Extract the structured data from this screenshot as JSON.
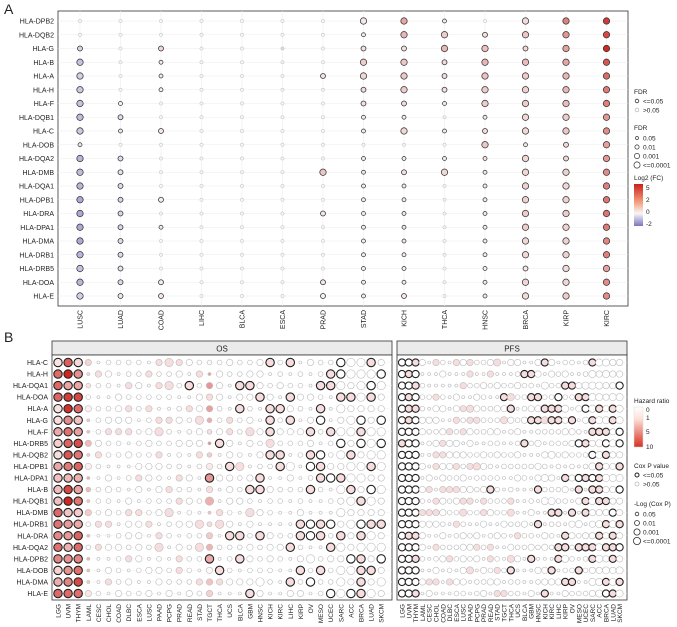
{
  "panel_letters": [
    "A",
    "B"
  ],
  "chart_data": [
    {
      "type": "scatter",
      "subtype": "bubble-matrix",
      "panel": "A",
      "genes": [
        "HLA-DPB2",
        "HLA-DQB2",
        "HLA-G",
        "HLA-B",
        "HLA-A",
        "HLA-H",
        "HLA-F",
        "HLA-DQB1",
        "HLA-C",
        "HLA-DOB",
        "HLA-DQA2",
        "HLA-DMB",
        "HLA-DQA1",
        "HLA-DPB1",
        "HLA-DRA",
        "HLA-DPA1",
        "HLA-DMA",
        "HLA-DRB1",
        "HLA-DRB5",
        "HLA-DOA",
        "HLA-E"
      ],
      "cancers": [
        "LUSC",
        "LUAD",
        "COAD",
        "LIHC",
        "BLCA",
        "ESCA",
        "PRAD",
        "STAD",
        "KICH",
        "THCA",
        "HNSC",
        "BRCA",
        "KIRP",
        "KIRC"
      ],
      "log2fc": [
        [
          0,
          0,
          0,
          0,
          0,
          0,
          0,
          0.3,
          1.5,
          0.2,
          0,
          0.5,
          2.2,
          3.5
        ],
        [
          0,
          0,
          0,
          0,
          0,
          0,
          0,
          0.2,
          1.2,
          0.8,
          0.4,
          0.9,
          1.8,
          3.2
        ],
        [
          -0.5,
          0,
          0.6,
          0,
          0,
          0.7,
          0,
          0.4,
          0.4,
          1.2,
          1.0,
          0.6,
          1.6,
          3.8
        ],
        [
          -0.8,
          0,
          0.2,
          0,
          0,
          0.1,
          0,
          0.8,
          0.9,
          0.5,
          1.2,
          1.1,
          1.5,
          3.0
        ],
        [
          -0.6,
          0,
          0.2,
          0,
          0,
          0.1,
          0.4,
          0.6,
          0.9,
          0.5,
          1.0,
          0.8,
          1.2,
          2.6
        ],
        [
          -0.7,
          0,
          0.1,
          0,
          0,
          0.1,
          0.1,
          0.5,
          0.8,
          0.4,
          0.8,
          0.7,
          1.2,
          2.3
        ],
        [
          -0.8,
          0,
          0,
          0,
          0,
          0,
          0,
          0.4,
          0.5,
          0.2,
          0.8,
          0.8,
          1.1,
          2.2
        ],
        [
          -0.9,
          -0.4,
          0,
          0,
          0,
          0,
          0,
          0.2,
          0.2,
          0.1,
          0.2,
          0.6,
          0.8,
          1.8
        ],
        [
          -0.7,
          -0.2,
          0.3,
          0,
          0,
          0,
          0,
          0.3,
          0.6,
          0.2,
          0.5,
          0.6,
          0.9,
          2.0
        ],
        [
          -0.2,
          0,
          0,
          0,
          0,
          0,
          0,
          0.1,
          0.1,
          0,
          0.9,
          0.3,
          0.5,
          1.6
        ],
        [
          -1.0,
          -0.4,
          0,
          0,
          0,
          0,
          0,
          0.2,
          0.2,
          0.2,
          0.3,
          0.6,
          0.6,
          1.8
        ],
        [
          -0.9,
          -0.3,
          0,
          0,
          0,
          0,
          0.9,
          0.3,
          0.4,
          0.6,
          0.2,
          0.6,
          0.7,
          2.0
        ],
        [
          -1.0,
          -0.4,
          0,
          0,
          0,
          0,
          0,
          0.2,
          0.2,
          0.1,
          0.2,
          0.7,
          0.6,
          2.2
        ],
        [
          -1.2,
          -0.5,
          0.2,
          0,
          0,
          0,
          0,
          0.2,
          0.2,
          0.1,
          0.2,
          0.7,
          0.7,
          2.4
        ],
        [
          -1.2,
          -0.5,
          0,
          0,
          0,
          0,
          0.3,
          0.2,
          0.3,
          0.1,
          0.3,
          0.8,
          0.8,
          2.4
        ],
        [
          -1.2,
          -0.5,
          0.2,
          0,
          0,
          0,
          0,
          0.2,
          0.3,
          0.1,
          0.2,
          0.8,
          0.7,
          2.3
        ],
        [
          -1.2,
          -0.4,
          0,
          0,
          0,
          0,
          0,
          0.2,
          0.3,
          0.1,
          0.2,
          0.6,
          0.7,
          2.1
        ],
        [
          -1.0,
          -0.4,
          0,
          0,
          0,
          0,
          0,
          0.2,
          0.2,
          0.1,
          0.2,
          0.6,
          0.7,
          2.2
        ],
        [
          -0.8,
          -0.3,
          0,
          0,
          0,
          0,
          0,
          0.1,
          0.1,
          0,
          0.1,
          0.3,
          0.5,
          1.6
        ],
        [
          -1.0,
          -0.4,
          0.2,
          0,
          0,
          0,
          0.3,
          0.2,
          0.2,
          0.1,
          0.2,
          0.6,
          0.6,
          2.0
        ],
        [
          -0.6,
          -0.2,
          0.3,
          0,
          0,
          0,
          0.1,
          0.2,
          0.3,
          0.1,
          0.2,
          0.5,
          0.8,
          2.0
        ]
      ],
      "fdr_level": [
        [
          0,
          0,
          0,
          0,
          0,
          0,
          0,
          3,
          3,
          1,
          0,
          3,
          3,
          3
        ],
        [
          0,
          0,
          0,
          0,
          0,
          0,
          0,
          1,
          3,
          3,
          2,
          3,
          3,
          3
        ],
        [
          2,
          0,
          2,
          0,
          0,
          0,
          0,
          2,
          2,
          3,
          3,
          2,
          3,
          3
        ],
        [
          3,
          0,
          1,
          0,
          0,
          0,
          0,
          3,
          3,
          2,
          3,
          3,
          3,
          3
        ],
        [
          3,
          0,
          1,
          0,
          0,
          0,
          2,
          3,
          3,
          2,
          3,
          3,
          3,
          3
        ],
        [
          3,
          0,
          1,
          0,
          0,
          0,
          0,
          2,
          3,
          2,
          3,
          3,
          3,
          3
        ],
        [
          3,
          1,
          0,
          0,
          0,
          0,
          0,
          2,
          2,
          1,
          3,
          3,
          3,
          3
        ],
        [
          3,
          2,
          0,
          0,
          0,
          0,
          0,
          1,
          1,
          0,
          1,
          3,
          3,
          3
        ],
        [
          3,
          1,
          2,
          0,
          0,
          0,
          0,
          1,
          3,
          1,
          2,
          3,
          3,
          3
        ],
        [
          1,
          0,
          0,
          0,
          0,
          0,
          0,
          0,
          0,
          0,
          3,
          1,
          2,
          3
        ],
        [
          3,
          2,
          0,
          0,
          0,
          0,
          0,
          1,
          1,
          1,
          1,
          3,
          2,
          3
        ],
        [
          3,
          2,
          0,
          0,
          0,
          0,
          3,
          1,
          2,
          3,
          1,
          3,
          3,
          3
        ],
        [
          3,
          2,
          0,
          0,
          0,
          0,
          0,
          1,
          1,
          0,
          1,
          3,
          3,
          3
        ],
        [
          3,
          2,
          2,
          0,
          0,
          0,
          0,
          1,
          1,
          0,
          1,
          3,
          3,
          3
        ],
        [
          3,
          2,
          0,
          0,
          0,
          0,
          2,
          1,
          1,
          0,
          1,
          3,
          3,
          3
        ],
        [
          3,
          2,
          1,
          0,
          0,
          0,
          0,
          1,
          1,
          0,
          1,
          3,
          3,
          3
        ],
        [
          3,
          2,
          0,
          0,
          0,
          0,
          0,
          1,
          1,
          0,
          1,
          3,
          3,
          3
        ],
        [
          3,
          2,
          0,
          0,
          0,
          0,
          0,
          1,
          1,
          0,
          1,
          3,
          3,
          3
        ],
        [
          3,
          2,
          0,
          0,
          0,
          0,
          0,
          1,
          1,
          0,
          1,
          2,
          3,
          3
        ],
        [
          3,
          2,
          2,
          0,
          0,
          0,
          2,
          1,
          1,
          0,
          1,
          3,
          3,
          3
        ],
        [
          3,
          2,
          2,
          0,
          0,
          0,
          2,
          1,
          2,
          0,
          1,
          3,
          3,
          3
        ]
      ],
      "legend": {
        "fdr_title": "FDR",
        "sig_items": [
          "<=0.05",
          ">0.05"
        ],
        "size_title": "FDR",
        "size_items": [
          "0.05",
          "0.01",
          "0.001",
          "<=0.0001"
        ],
        "color_title": "Log2 (FC)",
        "color_ticks": [
          5,
          2,
          0,
          -2
        ]
      },
      "colors": {
        "high": "#cc1f1a",
        "mid": "#f7f7f7",
        "low": "#7b74bf"
      }
    },
    {
      "type": "scatter",
      "subtype": "bubble-matrix",
      "panel": "B",
      "facets": [
        "OS",
        "PFS"
      ],
      "genes": [
        "HLA-C",
        "HLA-H",
        "HLA-DQA1",
        "HLA-DOA",
        "HLA-A",
        "HLA-G",
        "HLA-F",
        "HLA-DRB5",
        "HLA-DQB2",
        "HLA-DPB1",
        "HLA-DPA1",
        "HLA-B",
        "HLA-DQB1",
        "HLA-DMB",
        "HLA-DRB1",
        "HLA-DRA",
        "HLA-DQA2",
        "HLA-DPB2",
        "HLA-DOB",
        "HLA-DMA",
        "HLA-E"
      ],
      "cancers": [
        "LGG",
        "UVM",
        "THYM",
        "LAML",
        "CESC",
        "CHOL",
        "COAD",
        "DLBC",
        "ESCA",
        "LUSC",
        "PAAD",
        "PCPG",
        "PRAD",
        "READ",
        "STAD",
        "TGCT",
        "THCA",
        "UCS",
        "BLCA",
        "GBM",
        "HNSC",
        "KICH",
        "KIRC",
        "LIHC",
        "KIRP",
        "OV",
        "MESO",
        "UCEC",
        "SARC",
        "ACC",
        "BRCA",
        "LUAD",
        "SKCM"
      ],
      "os_hr_cols": {
        "LGG": 2.2,
        "UVM": 2.8,
        "THYM": 2.5,
        "LAML": 1.5,
        "TGCT": 1.8
      },
      "legend": {
        "hr_title": "Hazard ratio",
        "hr_ticks": [
          0,
          1,
          5,
          10
        ],
        "p_title": "Cox P value",
        "p_items": [
          "<=0.05",
          ">0.05"
        ],
        "size_title": "-Log (Cox P)",
        "size_items": [
          "0.05",
          "0.01",
          "0.001",
          "<=0.0001"
        ]
      },
      "colors": {
        "high": "#cc1f1a",
        "low": "#ffffff"
      }
    }
  ]
}
